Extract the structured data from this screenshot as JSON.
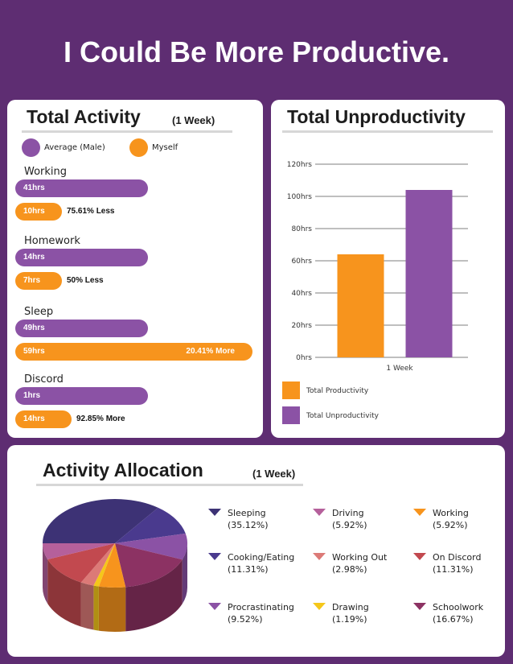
{
  "page_title": "I Could Be More Productive.",
  "activity": {
    "title": "Total Activity",
    "subtitle": "(1 Week)",
    "legend": [
      {
        "label": "Average (Male)",
        "color": "#8b52a5"
      },
      {
        "label": "Myself",
        "color": "#f7941d"
      }
    ],
    "groups": [
      {
        "name": "Working",
        "average": {
          "hours": 41,
          "label": "41hrs"
        },
        "myself": {
          "hours": 10,
          "label": "10hrs",
          "note": "75.61% Less"
        }
      },
      {
        "name": "Homework",
        "average": {
          "hours": 14,
          "label": "14hrs"
        },
        "myself": {
          "hours": 7,
          "label": "7hrs",
          "note": "50% Less"
        }
      },
      {
        "name": "Sleep",
        "average": {
          "hours": 49,
          "label": "49hrs"
        },
        "myself": {
          "hours": 59,
          "label": "59hrs",
          "note": "20.41% More"
        }
      },
      {
        "name": "Discord",
        "average": {
          "hours": 1,
          "label": "1hrs"
        },
        "myself": {
          "hours": 14,
          "label": "14hrs",
          "note": "92.85% More"
        }
      }
    ]
  },
  "unproductivity": {
    "title": "Total Unproductivity",
    "legend": [
      {
        "label": "Total Productivity",
        "color": "#f7941d"
      },
      {
        "label": "Total Unproductivity",
        "color": "#8b52a5"
      }
    ]
  },
  "allocation": {
    "title": "Activity Allocation",
    "subtitle": "(1 Week)"
  },
  "chart_data": [
    {
      "type": "bar",
      "categories": [
        "1 Week"
      ],
      "series": [
        {
          "name": "Total Productivity",
          "values": [
            64
          ],
          "color": "#f7941d"
        },
        {
          "name": "Total Unproductivity",
          "values": [
            104
          ],
          "color": "#8b52a5"
        }
      ],
      "yticks": [
        "0hrs",
        "20hrs",
        "40hrs",
        "60hrs",
        "80hrs",
        "100hrs",
        "120hrs"
      ],
      "ylim": [
        0,
        120
      ],
      "grid": true,
      "legend_placement": "bottom"
    },
    {
      "type": "pie",
      "slices": [
        {
          "label": "Sleeping",
          "value": 35.12,
          "display": "(35.12%)",
          "color": "#3d3275"
        },
        {
          "label": "Driving",
          "value": 5.92,
          "display": "(5.92%)",
          "color": "#b5609b"
        },
        {
          "label": "Working",
          "value": 5.92,
          "display": "(5.92%)",
          "color": "#f7941d"
        },
        {
          "label": "Cooking/Eating",
          "value": 11.31,
          "display": "(11.31%)",
          "color": "#4a3a8e"
        },
        {
          "label": "Working Out",
          "value": 2.98,
          "display": "(2.98%)",
          "color": "#dc7a77"
        },
        {
          "label": "On Discord",
          "value": 11.31,
          "display": "(11.31%)",
          "color": "#c2494f"
        },
        {
          "label": "Procrastinating",
          "value": 9.52,
          "display": "(9.52%)",
          "color": "#8b52a5"
        },
        {
          "label": "Drawing",
          "value": 1.19,
          "display": "(1.19%)",
          "color": "#f5c71a"
        },
        {
          "label": "Schoolwork",
          "value": 16.67,
          "display": "(16.67%)",
          "color": "#8c3263"
        }
      ]
    }
  ]
}
